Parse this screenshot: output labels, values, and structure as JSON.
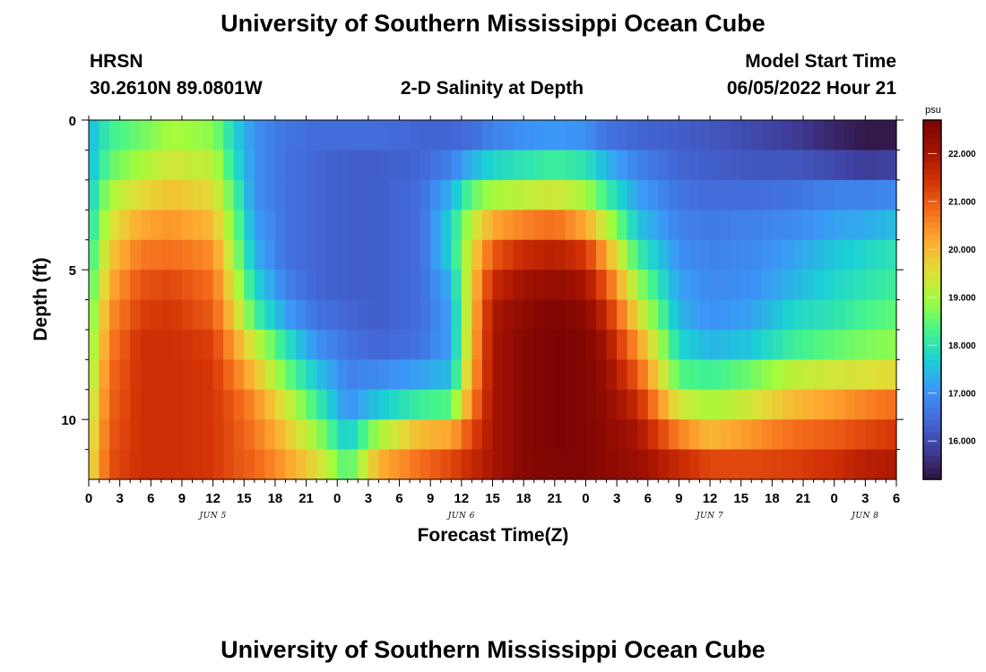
{
  "header": {
    "title": "University of Southern Mississippi Ocean Cube",
    "station": "HRSN",
    "coords": "30.2610N  89.0801W",
    "subtitle": "2-D Salinity at Depth",
    "model_label": "Model Start Time",
    "model_time": "06/05/2022 Hour 21"
  },
  "footer": {
    "title": "University of Southern Mississippi Ocean Cube"
  },
  "colors": {
    "ramp": [
      "#30123b",
      "#3f3d9b",
      "#4369d8",
      "#3c96f7",
      "#1bd0d5",
      "#47f58a",
      "#a3fc3c",
      "#e2dd37",
      "#fea931",
      "#f46b1b",
      "#d23105",
      "#a11201",
      "#7a0403"
    ]
  },
  "chart_data": {
    "type": "heatmap",
    "xlabel": "Forecast Time(Z)",
    "ylabel": "Depth (ft)",
    "x_range_hours": [
      0,
      78
    ],
    "x_ticks": [
      "0",
      "3",
      "6",
      "9",
      "12",
      "15",
      "18",
      "21",
      "0",
      "3",
      "6",
      "9",
      "12",
      "15",
      "18",
      "21",
      "0",
      "3",
      "6",
      "9",
      "12",
      "15",
      "18",
      "21",
      "0",
      "3",
      "6"
    ],
    "date_labels": [
      {
        "text": "JUN 5",
        "hour": 12
      },
      {
        "text": "JUN 6",
        "hour": 36
      },
      {
        "text": "JUN 7",
        "hour": 60
      },
      {
        "text": "JUN 8",
        "hour": 75
      }
    ],
    "y_ticks": [
      "0",
      "5",
      "10"
    ],
    "y_tick_values": [
      0,
      5,
      10
    ],
    "y_range_ft": [
      0,
      12
    ],
    "depth_levels_ft": [
      0.5,
      1.5,
      2.5,
      3.5,
      4.5,
      5.5,
      6.5,
      7.5,
      8.5,
      9.5,
      10.5,
      11.5
    ],
    "colorbar": {
      "unit": "psu",
      "min": 15.2,
      "max": 22.7,
      "ticks": [
        "16.000",
        "17.000",
        "18.000",
        "19.000",
        "20.000",
        "21.000",
        "22.000"
      ],
      "tick_values": [
        16,
        17,
        18,
        19,
        20,
        21,
        22
      ]
    },
    "salinity_profile_psu": [
      {
        "hour": 0,
        "values": [
          17.4,
          17.4,
          17.6,
          17.8,
          18.0,
          18.2,
          18.4,
          18.6,
          18.8,
          19.0,
          19.2,
          19.4
        ]
      },
      {
        "hour": 2,
        "values": [
          18.2,
          18.5,
          19.0,
          19.4,
          19.8,
          20.1,
          20.4,
          20.6,
          20.8,
          20.9,
          21.0,
          21.1
        ]
      },
      {
        "hour": 5,
        "values": [
          18.6,
          19.0,
          19.6,
          20.2,
          20.7,
          21.1,
          21.3,
          21.5,
          21.5,
          21.5,
          21.5,
          21.5
        ]
      },
      {
        "hour": 8,
        "values": [
          19.0,
          19.4,
          19.9,
          20.4,
          20.8,
          21.2,
          21.4,
          21.5,
          21.5,
          21.5,
          21.5,
          21.5
        ]
      },
      {
        "hour": 12,
        "values": [
          18.8,
          19.2,
          19.6,
          20.0,
          20.5,
          20.8,
          21.0,
          21.3,
          21.4,
          21.4,
          21.4,
          21.4
        ]
      },
      {
        "hour": 14,
        "values": [
          17.8,
          18.0,
          18.4,
          18.7,
          19.0,
          19.4,
          19.8,
          20.3,
          20.7,
          21.0,
          21.1,
          21.1
        ]
      },
      {
        "hour": 16,
        "values": [
          17.0,
          17.0,
          17.0,
          17.2,
          17.4,
          17.8,
          18.3,
          19.3,
          20.0,
          20.5,
          20.7,
          20.9
        ]
      },
      {
        "hour": 19,
        "values": [
          16.6,
          16.6,
          16.6,
          16.6,
          16.6,
          16.8,
          17.2,
          18.0,
          18.6,
          19.4,
          19.9,
          20.3
        ]
      },
      {
        "hour": 22,
        "values": [
          16.5,
          16.4,
          16.4,
          16.4,
          16.4,
          16.4,
          16.6,
          17.0,
          17.6,
          18.2,
          18.9,
          19.6
        ]
      },
      {
        "hour": 25,
        "values": [
          16.5,
          16.3,
          16.3,
          16.3,
          16.3,
          16.3,
          16.4,
          16.6,
          16.8,
          17.0,
          17.6,
          18.3
        ]
      },
      {
        "hour": 28,
        "values": [
          16.5,
          16.3,
          16.3,
          16.3,
          16.3,
          16.3,
          16.3,
          16.4,
          16.9,
          17.6,
          19.0,
          20.1
        ]
      },
      {
        "hour": 32,
        "values": [
          16.4,
          16.4,
          16.5,
          16.5,
          16.5,
          16.5,
          16.5,
          16.6,
          17.2,
          18.2,
          20.0,
          20.8
        ]
      },
      {
        "hour": 35,
        "values": [
          16.4,
          16.8,
          17.4,
          17.8,
          17.8,
          17.4,
          17.2,
          17.2,
          17.5,
          18.4,
          20.2,
          21.2
        ]
      },
      {
        "hour": 37,
        "values": [
          16.5,
          17.4,
          18.5,
          19.2,
          19.6,
          19.8,
          19.9,
          20.0,
          20.2,
          20.6,
          21.2,
          21.6
        ]
      },
      {
        "hour": 39,
        "values": [
          16.8,
          17.8,
          19.0,
          20.2,
          21.0,
          21.6,
          21.9,
          22.0,
          22.0,
          22.0,
          22.0,
          22.0
        ]
      },
      {
        "hour": 42,
        "values": [
          17.0,
          18.0,
          19.2,
          20.6,
          21.6,
          22.1,
          22.4,
          22.5,
          22.5,
          22.5,
          22.5,
          22.5
        ]
      },
      {
        "hour": 45,
        "values": [
          17.1,
          18.2,
          19.4,
          20.8,
          21.8,
          22.3,
          22.6,
          22.7,
          22.7,
          22.7,
          22.7,
          22.6
        ]
      },
      {
        "hour": 48,
        "values": [
          17.0,
          18.0,
          19.0,
          20.2,
          21.4,
          22.0,
          22.4,
          22.6,
          22.6,
          22.6,
          22.6,
          22.6
        ]
      },
      {
        "hour": 50,
        "values": [
          16.6,
          17.4,
          18.2,
          19.2,
          20.2,
          21.0,
          21.6,
          22.0,
          22.2,
          22.3,
          22.4,
          22.4
        ]
      },
      {
        "hour": 53,
        "values": [
          16.4,
          16.8,
          17.2,
          17.6,
          18.2,
          18.9,
          19.6,
          20.4,
          21.0,
          21.6,
          22.0,
          22.2
        ]
      },
      {
        "hour": 57,
        "values": [
          16.3,
          16.4,
          16.6,
          16.8,
          17.0,
          17.2,
          17.4,
          17.8,
          18.4,
          19.4,
          20.6,
          21.6
        ]
      },
      {
        "hour": 60,
        "values": [
          16.2,
          16.3,
          16.5,
          16.7,
          16.8,
          16.9,
          17.0,
          17.4,
          18.2,
          19.0,
          20.0,
          21.2
        ]
      },
      {
        "hour": 64,
        "values": [
          16.0,
          16.2,
          16.5,
          16.8,
          16.9,
          17.0,
          17.2,
          17.6,
          18.6,
          19.4,
          20.4,
          21.2
        ]
      },
      {
        "hour": 68,
        "values": [
          15.8,
          16.2,
          16.6,
          16.9,
          17.2,
          17.4,
          17.8,
          18.2,
          19.2,
          20.0,
          20.8,
          21.3
        ]
      },
      {
        "hour": 72,
        "values": [
          15.5,
          16.0,
          16.8,
          17.2,
          17.6,
          17.8,
          18.0,
          18.5,
          19.4,
          20.3,
          21.0,
          21.5
        ]
      },
      {
        "hour": 75,
        "values": [
          15.3,
          15.8,
          16.8,
          17.3,
          17.8,
          18.0,
          18.3,
          18.7,
          19.5,
          20.6,
          21.2,
          21.8
        ]
      },
      {
        "hour": 78,
        "values": [
          15.3,
          15.9,
          16.9,
          17.5,
          18.0,
          18.2,
          18.5,
          18.8,
          19.6,
          20.8,
          21.4,
          21.9
        ]
      }
    ]
  }
}
